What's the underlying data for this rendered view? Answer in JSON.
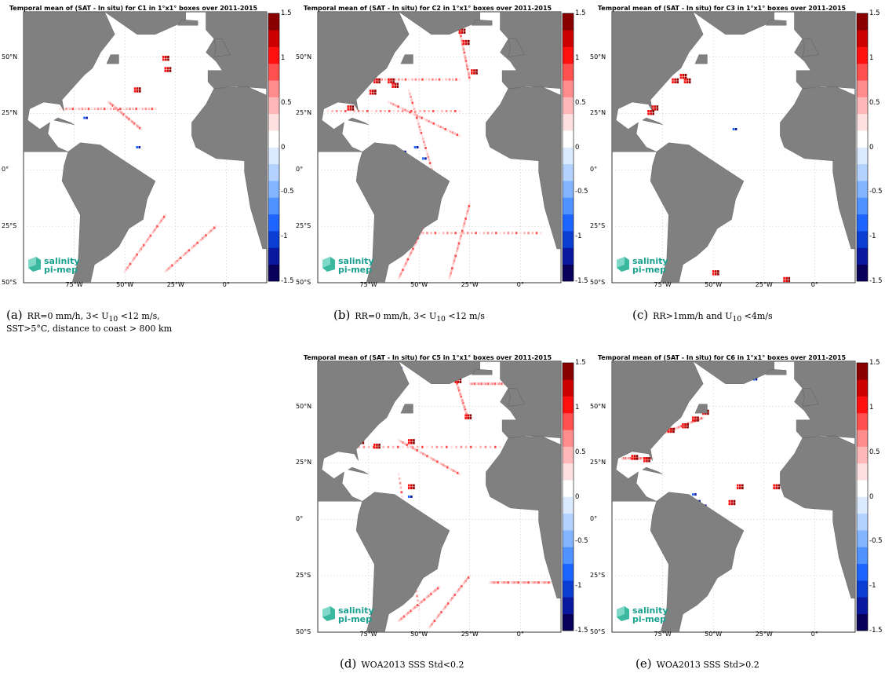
{
  "panels": [
    {
      "id": "a",
      "title": "Temporal mean of (SAT - In situ) for C1 in 1°x1° boxes over 2011-2015",
      "letter": "(a)",
      "caption_line1": "RR=0 mm/h, 3< U",
      "caption_sub": "10",
      "caption_rest": " <12 m/s,",
      "caption_line2": "SST>5°C, distance to coast > 800 km"
    },
    {
      "id": "b",
      "title": "Temporal mean of (SAT - In situ) for C2 in 1°x1° boxes over 2011-2015",
      "letter": "(b)",
      "caption_line1": "RR=0 mm/h, 3< U",
      "caption_sub": "10",
      "caption_rest": " <12 m/s",
      "caption_line2": ""
    },
    {
      "id": "c",
      "title": "Temporal mean of (SAT - In situ) for C3 in 1°x1° boxes over 2011-2015",
      "letter": "(c)",
      "caption_line1": "RR>1mm/h and U",
      "caption_sub": "10",
      "caption_rest": " <4m/s",
      "caption_line2": ""
    },
    {
      "id": "d",
      "title": "Temporal mean of (SAT - In situ) for C5 in 1°x1° boxes over 2011-2015",
      "letter": "(d)",
      "caption_line1": "WOA2013 SSS Std<0.2",
      "caption_sub": "",
      "caption_rest": "",
      "caption_line2": ""
    },
    {
      "id": "e",
      "title": "Temporal mean of (SAT - In situ) for C6 in 1°x1° boxes over 2011-2015",
      "letter": "(e)",
      "caption_line1": "WOA2013 SSS Std>0.2",
      "caption_sub": "",
      "caption_rest": "",
      "caption_line2": ""
    }
  ],
  "axes": {
    "lat_ticks": [
      "50°N",
      "25°N",
      "0°",
      "25°S",
      "50°S"
    ],
    "lon_ticks": [
      "75°W",
      "50°W",
      "25°W",
      "0°"
    ]
  },
  "colorbar": {
    "ticks": [
      "1.5",
      "1",
      "0.5",
      "0",
      "-0.5",
      "-1",
      "-1.5"
    ],
    "colors": [
      "#08005a",
      "#0a18a0",
      "#0a3ed2",
      "#1e64ff",
      "#5092ff",
      "#82b4ff",
      "#b4d2ff",
      "#dceaff",
      "#ffffff",
      "#ffe0e0",
      "#ffb8b8",
      "#ff8c8c",
      "#ff5050",
      "#ff1010",
      "#cc0000",
      "#8a0000"
    ]
  },
  "logo": {
    "line1": "salinity",
    "line2": "pi-mep"
  },
  "colors": {
    "land": "#808080",
    "ocean": "#ffffff",
    "track": "#ff8080"
  }
}
